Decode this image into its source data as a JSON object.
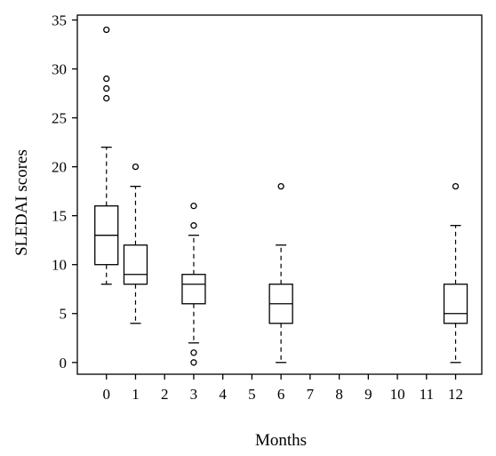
{
  "chart_data": {
    "type": "box",
    "xlabel": "Months",
    "ylabel": "SLEDAI scores",
    "ylim": [
      -1.2,
      35.5
    ],
    "yticks": [
      0,
      5,
      10,
      15,
      20,
      25,
      30,
      35
    ],
    "xticks": [
      0,
      1,
      2,
      3,
      4,
      5,
      6,
      7,
      8,
      9,
      10,
      11,
      12
    ],
    "xlim": [
      -1,
      12.9
    ],
    "grid": false,
    "boxes": [
      {
        "month": 0,
        "whisker_low": 8,
        "q1": 10,
        "median": 13,
        "q3": 16,
        "whisker_high": 22,
        "outliers": [
          27,
          28,
          29,
          34
        ]
      },
      {
        "month": 1,
        "whisker_low": 4,
        "q1": 8,
        "median": 9,
        "q3": 12,
        "whisker_high": 18,
        "outliers": [
          20
        ]
      },
      {
        "month": 3,
        "whisker_low": 2,
        "q1": 6,
        "median": 8,
        "q3": 9,
        "whisker_high": 13,
        "outliers": [
          0,
          1,
          14,
          16
        ]
      },
      {
        "month": 6,
        "whisker_low": 0,
        "q1": 4,
        "median": 6,
        "q3": 8,
        "whisker_high": 12,
        "outliers": [
          18
        ]
      },
      {
        "month": 12,
        "whisker_low": 0,
        "q1": 4,
        "median": 5,
        "q3": 8,
        "whisker_high": 14,
        "outliers": [
          18
        ]
      }
    ]
  }
}
